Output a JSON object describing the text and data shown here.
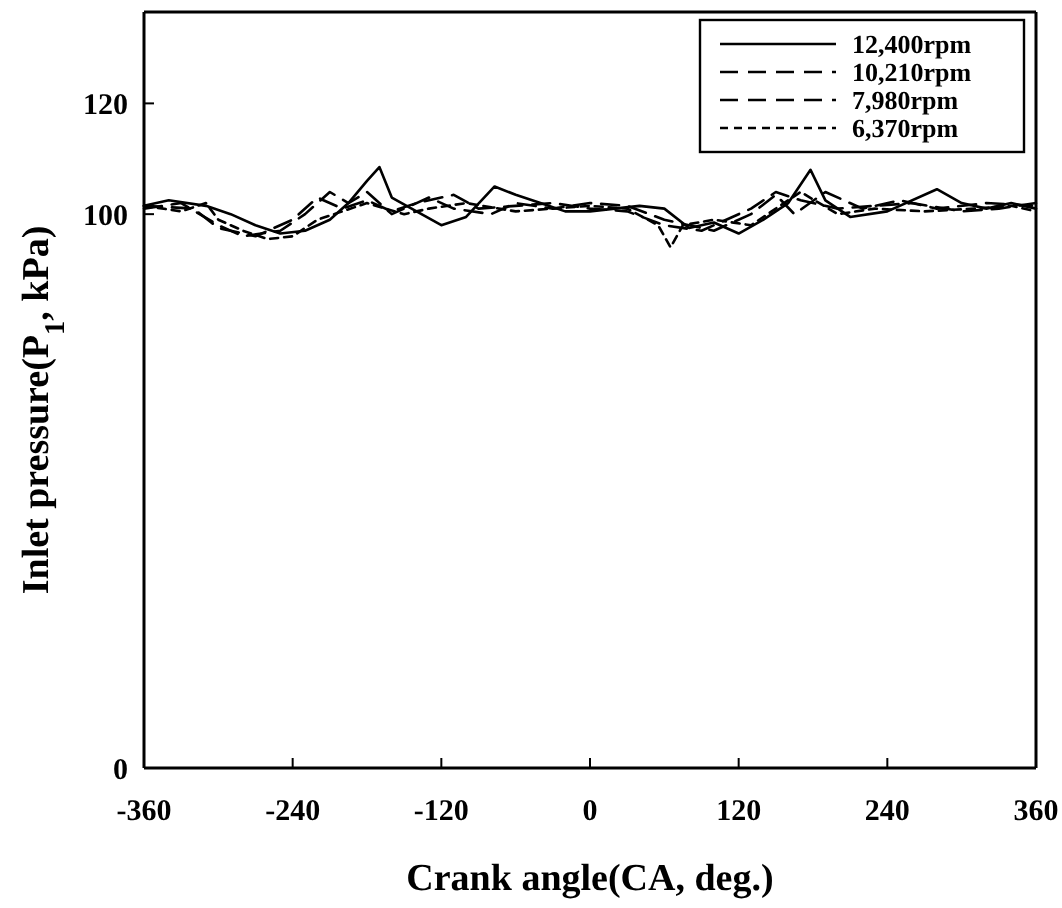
{
  "chart_data": {
    "type": "line",
    "xlabel": "Crank angle(CA, deg.)",
    "ylabel": "Inlet pressure(P$_{1}$, kPa)",
    "xlim": [
      -360,
      360
    ],
    "xticks": [
      -360,
      -240,
      -120,
      0,
      120,
      240,
      360
    ],
    "ylim": [
      0,
      136.5
    ],
    "yticks": [
      0,
      100,
      120
    ],
    "grid": false,
    "legend": "top right",
    "marker": "none",
    "series": [
      {
        "name": "12,400rpm",
        "color": "#000000",
        "line_style": "solid",
        "x": [
          -360,
          -340,
          -310,
          -290,
          -270,
          -250,
          -230,
          -210,
          -195,
          -180,
          -170,
          -160,
          -140,
          -120,
          -100,
          -77,
          -60,
          -40,
          -20,
          0,
          20,
          40,
          60,
          80,
          100,
          120,
          140,
          160,
          178,
          190,
          210,
          240,
          280,
          300,
          320,
          340,
          360
        ],
        "values": [
          101.5,
          102.5,
          101.5,
          100,
          98,
          96.5,
          97,
          99,
          102,
          106,
          108.5,
          103,
          100.5,
          98,
          99.5,
          105,
          103.5,
          102,
          100.5,
          100.5,
          101,
          101.5,
          101,
          97.5,
          98.5,
          96.5,
          99,
          102,
          108,
          102.5,
          99.5,
          100.5,
          104.5,
          102,
          101,
          102,
          101
        ]
      },
      {
        "name": "10,210rpm",
        "color": "#000000",
        "line_style": "dashed",
        "x": [
          -360,
          -330,
          -300,
          -280,
          -250,
          -230,
          -210,
          -195,
          -180,
          -160,
          -130,
          -110,
          -80,
          -60,
          -30,
          0,
          30,
          60,
          80,
          100,
          130,
          150,
          165,
          190,
          220,
          250,
          280,
          320,
          360
        ],
        "values": [
          101,
          102,
          98,
          96,
          97,
          100,
          104,
          102,
          104,
          100,
          103,
          101,
          100,
          102,
          101,
          102,
          101.5,
          99,
          98,
          97,
          100,
          103.5,
          100,
          104,
          101,
          102.5,
          101,
          102,
          101.5
        ]
      },
      {
        "name": "7,980rpm",
        "color": "#000000",
        "line_style": "dashed",
        "x": [
          -360,
          -320,
          -300,
          -270,
          -240,
          -220,
          -200,
          -180,
          -160,
          -140,
          -110,
          -90,
          -60,
          -30,
          0,
          30,
          60,
          90,
          110,
          130,
          150,
          170,
          200,
          230,
          260,
          300,
          330,
          360
        ],
        "values": [
          101.5,
          101,
          97.5,
          96,
          99,
          103,
          101,
          102.5,
          100.5,
          102,
          103.5,
          101,
          101.5,
          102,
          101,
          100.5,
          98,
          97,
          99,
          101,
          104,
          102.5,
          101,
          101.5,
          102,
          100.5,
          101,
          102
        ]
      },
      {
        "name": "6,370rpm",
        "color": "#000000",
        "line_style": "dotted",
        "x": [
          -360,
          -330,
          -310,
          -300,
          -280,
          -260,
          -240,
          -220,
          -200,
          -180,
          -150,
          -130,
          -100,
          -60,
          -30,
          0,
          30,
          55,
          65,
          75,
          100,
          130,
          150,
          170,
          200,
          230,
          270,
          310,
          340,
          360
        ],
        "values": [
          101.5,
          100.5,
          102,
          99,
          97,
          95.5,
          96,
          99,
          100.5,
          102,
          100,
          101,
          102,
          100.5,
          101,
          101.5,
          101,
          98,
          94,
          98,
          99,
          98,
          101,
          104,
          100,
          101,
          100.5,
          101,
          101.5,
          100.5
        ]
      }
    ]
  }
}
